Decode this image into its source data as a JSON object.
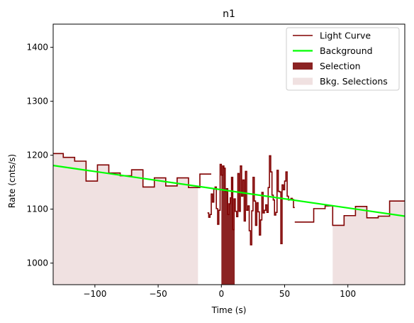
{
  "chart_data": {
    "type": "line",
    "title": "n1",
    "xlabel": "Time (s)",
    "ylabel": "Rate (cnts/s)",
    "xlim": [
      -133,
      145
    ],
    "ylim": [
      960,
      1443
    ],
    "x_ticks": [
      -100,
      -50,
      0,
      50,
      100
    ],
    "y_ticks": [
      1000,
      1100,
      1200,
      1300,
      1400
    ],
    "grid": false,
    "legend_position": "top-right",
    "colors": {
      "light_curve": "#800000",
      "background": "#00ff00",
      "selection": "#8b2323",
      "bkg_selection": "#f0e1e1"
    },
    "legend": [
      {
        "label": "Light Curve",
        "kind": "line",
        "color": "#800000"
      },
      {
        "label": "Background",
        "kind": "line-thick",
        "color": "#00ff00"
      },
      {
        "label": "Selection",
        "kind": "patch",
        "color": "#8b2323"
      },
      {
        "label": "Bkg. Selections",
        "kind": "patch",
        "color": "#f0e1e1"
      }
    ],
    "light_curve_coarse": [
      {
        "x0": -133,
        "x1": -125,
        "y": 1203
      },
      {
        "x0": -125,
        "x1": -116,
        "y": 1196
      },
      {
        "x0": -116,
        "x1": -107,
        "y": 1189
      },
      {
        "x0": -107,
        "x1": -98,
        "y": 1152
      },
      {
        "x0": -98,
        "x1": -89,
        "y": 1182
      },
      {
        "x0": -89,
        "x1": -80,
        "y": 1167
      },
      {
        "x0": -80,
        "x1": -71,
        "y": 1162
      },
      {
        "x0": -71,
        "x1": -62,
        "y": 1173
      },
      {
        "x0": -62,
        "x1": -53,
        "y": 1141
      },
      {
        "x0": -53,
        "x1": -44,
        "y": 1158
      },
      {
        "x0": -44,
        "x1": -35,
        "y": 1143
      },
      {
        "x0": -35,
        "x1": -26,
        "y": 1158
      },
      {
        "x0": -26,
        "x1": -17,
        "y": 1140
      },
      {
        "x0": -17,
        "x1": -8,
        "y": 1165
      }
    ],
    "light_curve_fine": {
      "x_start": -11,
      "bin": 1,
      "y": [
        1093,
        1085,
        1090,
        1128,
        1113,
        1137,
        1141,
        1101,
        1072,
        1098,
        1183,
        1163,
        1180,
        1176,
        1133,
        1138,
        1090,
        1110,
        1121,
        1159,
        1062,
        1119,
        1096,
        1086,
        1166,
        1096,
        1180,
        1124,
        1154,
        1078,
        1170,
        1098,
        1106,
        1060,
        1034,
        1097,
        1159,
        1115,
        1070,
        1112,
        1095,
        1052,
        1080,
        1131,
        1093,
        1098,
        1108,
        1094,
        1140,
        1199,
        1169,
        1126,
        1117,
        1089,
        1094,
        1172,
        1133,
        1132,
        1036,
        1145,
        1136,
        1152,
        1169,
        1124,
        1117,
        1118,
        1120,
        1118,
        1103
      ]
    },
    "light_curve_tail": [
      {
        "x0": 58,
        "x1": 64,
        "y": 1076
      },
      {
        "x0": 64,
        "x1": 73,
        "y": 1076
      },
      {
        "x0": 73,
        "x1": 82,
        "y": 1101
      },
      {
        "x0": 82,
        "x1": 88,
        "y": 1106
      },
      {
        "x0": 88,
        "x1": 97,
        "y": 1070
      },
      {
        "x0": 97,
        "x1": 106,
        "y": 1088
      },
      {
        "x0": 106,
        "x1": 115,
        "y": 1105
      },
      {
        "x0": 115,
        "x1": 124,
        "y": 1084
      },
      {
        "x0": 124,
        "x1": 133,
        "y": 1087
      },
      {
        "x0": 133,
        "x1": 145,
        "y": 1115
      }
    ],
    "background_line": {
      "x": [
        -133,
        145
      ],
      "y": [
        1181,
        1087
      ]
    },
    "selection_range": [
      0,
      10.5
    ],
    "bkg_selection_ranges": [
      [
        -133,
        -18.5
      ],
      [
        88,
        145
      ]
    ]
  }
}
